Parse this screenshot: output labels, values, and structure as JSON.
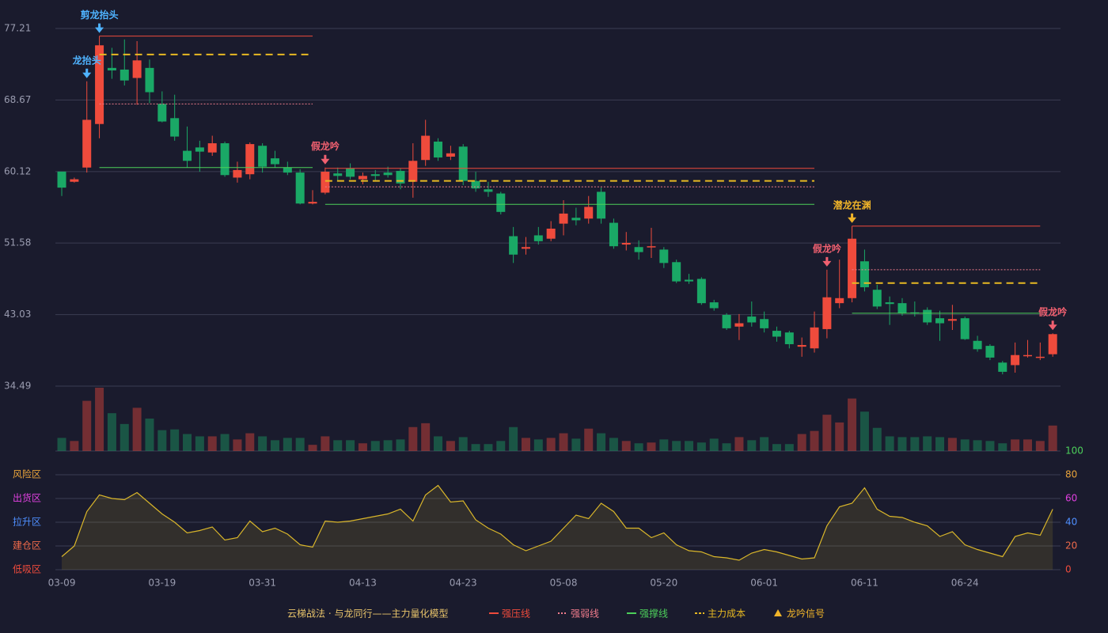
{
  "chart_data": {
    "type": "candlestick",
    "categories": [
      "03-09",
      null,
      null,
      null,
      null,
      null,
      null,
      null,
      "03-19",
      null,
      null,
      null,
      null,
      null,
      null,
      null,
      "03-31",
      null,
      null,
      null,
      null,
      null,
      null,
      null,
      "04-13",
      null,
      null,
      null,
      null,
      null,
      null,
      null,
      "04-23",
      null,
      null,
      null,
      null,
      null,
      null,
      null,
      "05-08",
      null,
      null,
      null,
      null,
      null,
      null,
      null,
      "05-20",
      null,
      null,
      null,
      null,
      null,
      null,
      null,
      "06-01",
      null,
      null,
      null,
      null,
      null,
      null,
      null,
      "06-11",
      null,
      null,
      null,
      null,
      null,
      null,
      null,
      "06-24",
      null,
      null,
      null,
      null,
      null,
      null,
      null
    ],
    "open": [
      60.12,
      58.9,
      60.6,
      65.8,
      72.5,
      72.3,
      71.3,
      72.5,
      68.2,
      66.5,
      62.6,
      63.0,
      62.4,
      63.5,
      59.4,
      59.8,
      63.2,
      61.7,
      60.6,
      60.0,
      56.3,
      57.6,
      59.9,
      60.5,
      59.2,
      59.8,
      60.0,
      60.2,
      58.9,
      61.5,
      63.7,
      61.9,
      63.1,
      59.0,
      58.0,
      57.5,
      52.4,
      50.9,
      52.5,
      52.1,
      53.9,
      54.6,
      54.5,
      57.7,
      54.0,
      51.4,
      51.1,
      51.1,
      50.8,
      49.3,
      47.2,
      47.3,
      44.5,
      43.0,
      41.6,
      42.8,
      42.5,
      41.1,
      40.9,
      39.2,
      39.0,
      41.3,
      44.4,
      45.0,
      49.4,
      46.0,
      44.5,
      44.4,
      43.3,
      43.6,
      42.6,
      42.3,
      42.6,
      39.9,
      39.3,
      37.3,
      37.0,
      38.1,
      37.9,
      38.3
    ],
    "high": [
      60.1,
      59.4,
      70.9,
      76.3,
      74.9,
      75.9,
      75.7,
      73.5,
      69.7,
      69.3,
      65.5,
      63.8,
      64.4,
      63.7,
      61.3,
      63.6,
      63.5,
      62.6,
      61.3,
      60.4,
      57.9,
      60.6,
      60.6,
      61.1,
      60.0,
      60.3,
      60.7,
      60.5,
      63.5,
      66.3,
      64.1,
      63.2,
      63.4,
      60.1,
      58.9,
      57.7,
      53.5,
      52.3,
      53.5,
      54.2,
      56.7,
      55.8,
      57.2,
      58.2,
      54.5,
      52.9,
      51.9,
      53.4,
      51.1,
      49.6,
      47.9,
      47.5,
      44.8,
      43.2,
      43.1,
      44.6,
      43.4,
      41.6,
      41.1,
      40.3,
      43.4,
      48.4,
      49.6,
      53.6,
      50.8,
      46.6,
      45.2,
      45.0,
      44.6,
      43.9,
      43.5,
      44.2,
      42.8,
      40.5,
      39.5,
      37.5,
      39.7,
      40.0,
      39.7,
      40.8
    ],
    "low": [
      57.2,
      58.8,
      60.0,
      64.1,
      71.2,
      70.4,
      68.1,
      68.3,
      66.0,
      63.8,
      60.6,
      60.1,
      62.0,
      59.5,
      58.8,
      59.2,
      60.0,
      60.6,
      59.7,
      56.2,
      56.2,
      57.4,
      59.1,
      59.2,
      58.6,
      59.0,
      59.4,
      58.0,
      57.0,
      60.8,
      61.4,
      61.5,
      58.5,
      57.7,
      57.1,
      55.0,
      49.2,
      50.2,
      51.4,
      51.8,
      52.5,
      53.7,
      53.9,
      53.9,
      50.9,
      50.7,
      49.6,
      49.8,
      48.6,
      46.8,
      46.7,
      44.2,
      43.5,
      41.2,
      40.0,
      41.6,
      40.9,
      39.8,
      39.0,
      38.0,
      38.5,
      40.2,
      43.8,
      44.5,
      45.8,
      43.7,
      41.8,
      42.9,
      42.8,
      41.8,
      39.9,
      41.2,
      40.0,
      38.6,
      37.6,
      35.9,
      36.1,
      37.9,
      37.6,
      38.0
    ],
    "close": [
      58.2,
      59.2,
      66.3,
      75.2,
      72.2,
      71.0,
      73.4,
      69.6,
      66.1,
      64.3,
      61.4,
      62.5,
      63.5,
      59.7,
      60.3,
      63.4,
      60.7,
      61.0,
      60.0,
      56.3,
      56.5,
      60.1,
      59.6,
      59.5,
      59.6,
      59.6,
      59.7,
      58.7,
      61.4,
      64.4,
      61.8,
      62.3,
      59.0,
      58.1,
      57.7,
      55.3,
      50.2,
      51.1,
      51.8,
      53.3,
      55.1,
      54.3,
      55.9,
      54.5,
      51.2,
      51.6,
      50.5,
      51.2,
      49.2,
      47.0,
      47.0,
      44.4,
      43.8,
      41.4,
      42.0,
      42.1,
      41.4,
      40.4,
      39.5,
      39.4,
      41.5,
      45.1,
      45.0,
      52.1,
      46.3,
      44.0,
      44.3,
      43.2,
      43.2,
      42.1,
      42.0,
      42.5,
      40.1,
      38.9,
      37.9,
      36.2,
      38.2,
      38.2,
      38.0,
      40.7
    ],
    "volume": [
      17,
      13,
      65,
      82,
      49,
      35,
      56,
      42,
      27,
      28,
      22,
      19,
      19,
      22,
      15,
      23,
      19,
      14,
      17,
      17,
      8,
      19,
      14,
      14,
      10,
      13,
      14,
      15,
      31,
      36,
      19,
      13,
      18,
      9,
      9,
      13,
      31,
      17,
      15,
      17,
      23,
      16,
      29,
      23,
      17,
      13,
      10,
      11,
      15,
      13,
      13,
      11,
      16,
      10,
      18,
      14,
      18,
      9,
      9,
      22,
      26,
      47,
      37,
      68,
      51,
      30,
      19,
      18,
      18,
      19,
      18,
      17,
      15,
      14,
      13,
      10,
      15,
      15,
      13,
      33
    ],
    "volume_ylim": [
      0,
      82
    ],
    "up_color": "#ef4b3c",
    "down_color": "#1aa866",
    "ylim": [
      34.49,
      77.21
    ],
    "yticks": [
      34.49,
      43.03,
      51.58,
      60.12,
      68.67,
      77.21
    ],
    "grid": true,
    "oscillator": {
      "values": [
        11,
        20,
        49,
        63,
        60,
        59,
        65,
        56,
        47,
        40,
        31,
        33,
        36,
        25,
        27,
        41,
        32,
        35,
        30,
        21,
        19,
        41,
        40,
        41,
        43,
        45,
        47,
        51,
        41,
        63,
        71,
        57,
        58,
        42,
        35,
        30,
        21,
        16,
        20,
        24,
        35,
        46,
        43,
        56,
        49,
        35,
        35,
        27,
        31,
        21,
        16,
        15,
        11,
        10,
        8,
        14,
        17,
        15,
        12,
        9,
        10,
        37,
        53,
        56,
        69,
        51,
        45,
        44,
        40,
        37,
        28,
        32,
        21,
        17,
        14,
        11,
        28,
        31,
        29,
        51
      ],
      "color": "#d9b62a",
      "ylim": [
        0,
        100
      ],
      "yticks": [
        0,
        20,
        40,
        60,
        80,
        100
      ],
      "ytick_colors": [
        "#ef4b3c",
        "#ef6a4a",
        "#4f8fff",
        "#e040e0",
        "#e8a33a",
        "#4ccf5a"
      ],
      "zones": [
        {
          "label": "风险区",
          "value": 80,
          "color": "#e8a33a"
        },
        {
          "label": "出货区",
          "value": 60,
          "color": "#e040e0"
        },
        {
          "label": "拉升区",
          "value": 40,
          "color": "#4f8fff"
        },
        {
          "label": "建仓区",
          "value": 20,
          "color": "#ef6a4a"
        },
        {
          "label": "低吸区",
          "value": 0,
          "color": "#ef4b3c"
        }
      ]
    },
    "signals": [
      {
        "index": 2,
        "label": "龙抬头",
        "color": "#4fb3ff"
      },
      {
        "index": 3,
        "label": "剪龙抬头",
        "color": "#4fb3ff"
      },
      {
        "index": 21,
        "label": "假龙吟",
        "color": "#f06070"
      },
      {
        "index": 61,
        "label": "假龙吟",
        "color": "#f06070"
      },
      {
        "index": 63,
        "label": "潜龙在渊",
        "color": "#f0b429"
      },
      {
        "index": 79,
        "label": "假龙吟",
        "color": "#f06070"
      }
    ],
    "legend": {
      "title": "云梯战法 · 与龙同行——主力量化模型",
      "items": [
        {
          "name": "强压线",
          "color": "#ef4b3c",
          "style": "solid",
          "segments": [
            {
              "start": 3,
              "end": 20,
              "value": 76.3
            },
            {
              "start": 21,
              "end": 60,
              "value": 60.5
            },
            {
              "start": 63,
              "end": 78,
              "value": 53.6
            }
          ]
        },
        {
          "name": "强弱线",
          "color": "#f07c8c",
          "style": "dotted",
          "segments": [
            {
              "start": 3,
              "end": 20,
              "value": 68.2
            },
            {
              "start": 21,
              "end": 60,
              "value": 58.3
            },
            {
              "start": 63,
              "end": 78,
              "value": 48.4
            }
          ]
        },
        {
          "name": "强撑线",
          "color": "#4ccf5a",
          "style": "solid",
          "segments": [
            {
              "start": 3,
              "end": 20,
              "value": 60.6
            },
            {
              "start": 21,
              "end": 60,
              "value": 56.2
            },
            {
              "start": 63,
              "end": 78,
              "value": 43.2
            }
          ]
        },
        {
          "name": "主力成本",
          "color": "#e7b922",
          "style": "dashed",
          "segments": [
            {
              "start": 3,
              "end": 20,
              "value": 74.1
            },
            {
              "start": 21,
              "end": 60,
              "value": 59.0
            },
            {
              "start": 63,
              "end": 78,
              "value": 46.8
            }
          ]
        },
        {
          "name": "龙吟信号",
          "color": "#f0b429",
          "style": "marker",
          "segments": []
        }
      ]
    }
  }
}
